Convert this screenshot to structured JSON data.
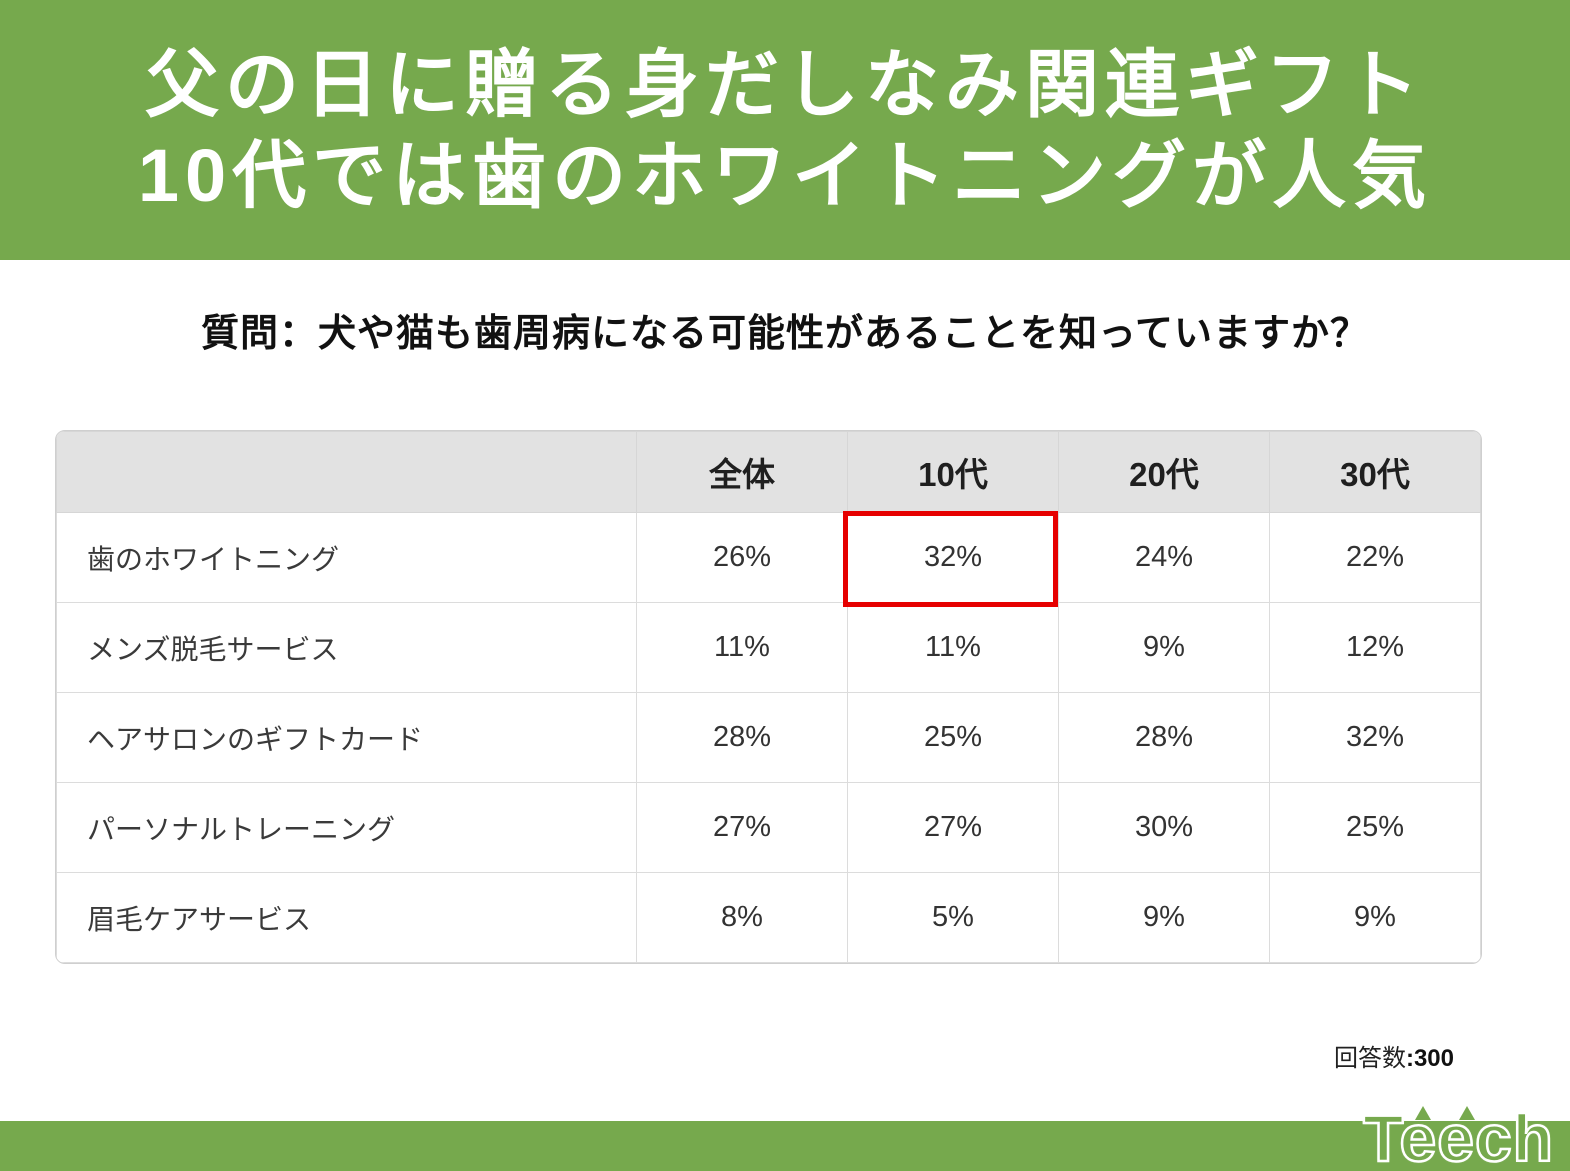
{
  "header": {
    "title_line1": "父の日に贈る身だしなみ関連ギフト",
    "title_line2": "10代では歯のホワイトニングが人気"
  },
  "question": "質問：犬や猫も歯周病になる可能性があることを知っていますか？",
  "colors": {
    "brand_green": "#76a94d",
    "highlight_red": "#e60000",
    "table_header_bg": "#e2e2e2"
  },
  "table": {
    "columns": [
      "",
      "全体",
      "10代",
      "20代",
      "30代"
    ],
    "rows": [
      {
        "label": "歯のホワイトニング",
        "values": [
          "26%",
          "32%",
          "24%",
          "22%"
        ]
      },
      {
        "label": "メンズ脱毛サービス",
        "values": [
          "11%",
          "11%",
          "9%",
          "12%"
        ]
      },
      {
        "label": "ヘアサロンのギフトカード",
        "values": [
          "28%",
          "25%",
          "28%",
          "32%"
        ]
      },
      {
        "label": "パーソナルトレーニング",
        "values": [
          "27%",
          "27%",
          "30%",
          "25%"
        ]
      },
      {
        "label": "眉毛ケアサービス",
        "values": [
          "8%",
          "5%",
          "9%",
          "9%"
        ]
      }
    ],
    "highlight": {
      "row_label": "歯のホワイトニング",
      "column": "10代",
      "value": "32%"
    }
  },
  "footer": {
    "respondents_label": "回答数",
    "respondents_value": ":300",
    "logo_text": "Teech"
  },
  "chart_data": {
    "type": "table",
    "title": "父の日に贈る身だしなみ関連ギフト 10代では歯のホワイトニングが人気",
    "question": "質問：犬や猫も歯周病になる可能性があることを知っていますか？",
    "columns": [
      "全体",
      "10代",
      "20代",
      "30代"
    ],
    "categories": [
      "歯のホワイトニング",
      "メンズ脱毛サービス",
      "ヘアサロンのギフトカード",
      "パーソナルトレーニング",
      "眉毛ケアサービス"
    ],
    "series": [
      {
        "name": "全体",
        "values": [
          26,
          11,
          28,
          27,
          8
        ]
      },
      {
        "name": "10代",
        "values": [
          32,
          11,
          25,
          27,
          5
        ]
      },
      {
        "name": "20代",
        "values": [
          24,
          9,
          28,
          30,
          9
        ]
      },
      {
        "name": "30代",
        "values": [
          22,
          12,
          32,
          25,
          9
        ]
      }
    ],
    "unit": "%",
    "highlight": {
      "row": "歯のホワイトニング",
      "column": "10代",
      "value": 32
    },
    "sample_size": 300
  }
}
